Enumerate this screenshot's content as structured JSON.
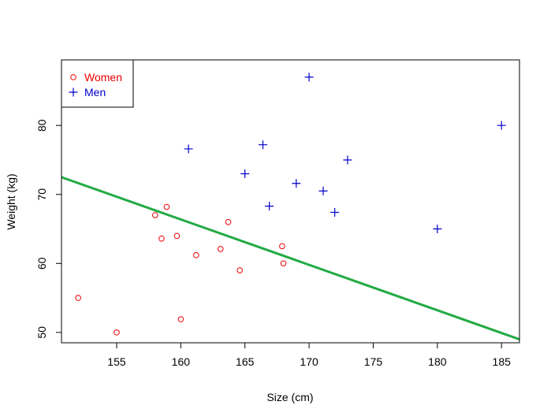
{
  "chart_data": {
    "type": "scatter",
    "title": "",
    "xlabel": "Size (cm)",
    "ylabel": "Weight (kg)",
    "xlim": [
      150.7,
      186.4
    ],
    "ylim": [
      48.5,
      89.5
    ],
    "x_ticks": [
      155,
      160,
      165,
      170,
      175,
      180,
      185
    ],
    "y_ticks": [
      50,
      60,
      70,
      80
    ],
    "grid": false,
    "legend_position": "top-left",
    "series": [
      {
        "name": "Women",
        "marker": "circle",
        "color": "#ee0000",
        "points": [
          [
            152,
            55
          ],
          [
            155,
            50
          ],
          [
            158,
            67
          ],
          [
            158.5,
            63.6
          ],
          [
            158.9,
            68.2
          ],
          [
            159.7,
            64
          ],
          [
            160,
            51.9
          ],
          [
            161.2,
            61.2
          ],
          [
            163.1,
            62.1
          ],
          [
            163.7,
            66
          ],
          [
            164.6,
            59
          ],
          [
            167.9,
            62.5
          ],
          [
            168,
            60
          ]
        ]
      },
      {
        "name": "Men",
        "marker": "plus",
        "color": "#0000cc",
        "points": [
          [
            160.6,
            76.6
          ],
          [
            165,
            73
          ],
          [
            166.4,
            77.2
          ],
          [
            166.9,
            68.3
          ],
          [
            169,
            71.6
          ],
          [
            170,
            87
          ],
          [
            171.1,
            70.5
          ],
          [
            172,
            67.4
          ],
          [
            173,
            75
          ],
          [
            180,
            65
          ],
          [
            185,
            80
          ]
        ]
      }
    ],
    "lines": [
      {
        "name": "fit",
        "color": "#22aa44",
        "from": [
          150.7,
          72.5
        ],
        "to": [
          186.4,
          49
        ]
      }
    ]
  }
}
